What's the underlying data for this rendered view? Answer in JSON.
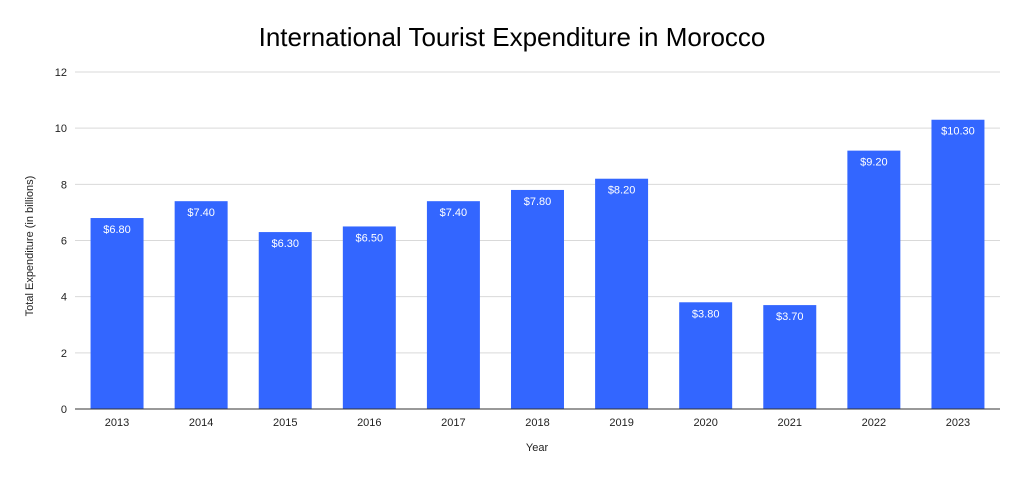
{
  "chart_data": {
    "type": "bar",
    "title": "International Tourist Expenditure in Morocco",
    "xlabel": "Year",
    "ylabel": "Total Expenditure (in billions)",
    "categories": [
      "2013",
      "2014",
      "2015",
      "2016",
      "2017",
      "2018",
      "2019",
      "2020",
      "2021",
      "2022",
      "2023"
    ],
    "values": [
      6.8,
      7.4,
      6.3,
      6.5,
      7.4,
      7.8,
      8.2,
      3.8,
      3.7,
      9.2,
      10.3
    ],
    "data_labels": [
      "$6.80",
      "$7.40",
      "$6.30",
      "$6.50",
      "$7.40",
      "$7.80",
      "$8.20",
      "$3.80",
      "$3.70",
      "$9.20",
      "$10.30"
    ],
    "ylim": [
      0,
      12
    ],
    "yticks": [
      "0",
      "2",
      "4",
      "6",
      "8",
      "10",
      "12"
    ],
    "grid": true,
    "legend": "none",
    "bar_color": "#3366ff"
  }
}
